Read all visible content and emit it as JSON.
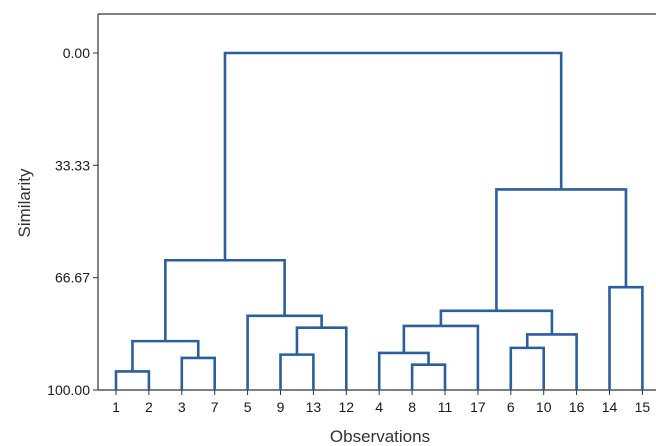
{
  "chart_data": {
    "type": "dendrogram",
    "xlabel": "Observations",
    "ylabel": "Similarity",
    "ylim": [
      0,
      100
    ],
    "y_inverted": true,
    "y_ticks": [
      {
        "value": 0,
        "label": "0.00"
      },
      {
        "value": 33.33,
        "label": "33.33"
      },
      {
        "value": 66.67,
        "label": "66.67"
      },
      {
        "value": 100,
        "label": "100.00"
      }
    ],
    "leaf_order": [
      "1",
      "2",
      "3",
      "7",
      "5",
      "9",
      "13",
      "12",
      "4",
      "8",
      "11",
      "17",
      "6",
      "10",
      "16",
      "14",
      "15"
    ],
    "merges": [
      {
        "left": "1",
        "right": "2",
        "similarity": 94.5
      },
      {
        "left": "3",
        "right": "7",
        "similarity": 90.5
      },
      {
        "left": "(1,2)",
        "right": "(3,7)",
        "similarity": 85.5
      },
      {
        "left": "9",
        "right": "13",
        "similarity": 89.5
      },
      {
        "left": "(9,13)",
        "right": "12",
        "similarity": 81.5
      },
      {
        "left": "5",
        "right": "(9,13,12)",
        "similarity": 78
      },
      {
        "left": "(1,2,3,7)",
        "right": "(5,9,13,12)",
        "similarity": 61.5
      },
      {
        "left": "8",
        "right": "11",
        "similarity": 92.5
      },
      {
        "left": "4",
        "right": "(8,11)",
        "similarity": 89
      },
      {
        "left": "(4,8,11)",
        "right": "17",
        "similarity": 81
      },
      {
        "left": "6",
        "right": "10",
        "similarity": 87.5
      },
      {
        "left": "(6,10)",
        "right": "16",
        "similarity": 83.5
      },
      {
        "left": "(4,8,11,17)",
        "right": "(6,10,16)",
        "similarity": 76.5
      },
      {
        "left": "14",
        "right": "15",
        "similarity": 69.5
      },
      {
        "left": "(4,...,16)",
        "right": "(14,15)",
        "similarity": 40.5
      },
      {
        "left": "(1,...,12)",
        "right": "(4,...,15)",
        "similarity": 0
      }
    ],
    "colors": {
      "line": "#2a5fa0",
      "axis": "#333333"
    }
  }
}
